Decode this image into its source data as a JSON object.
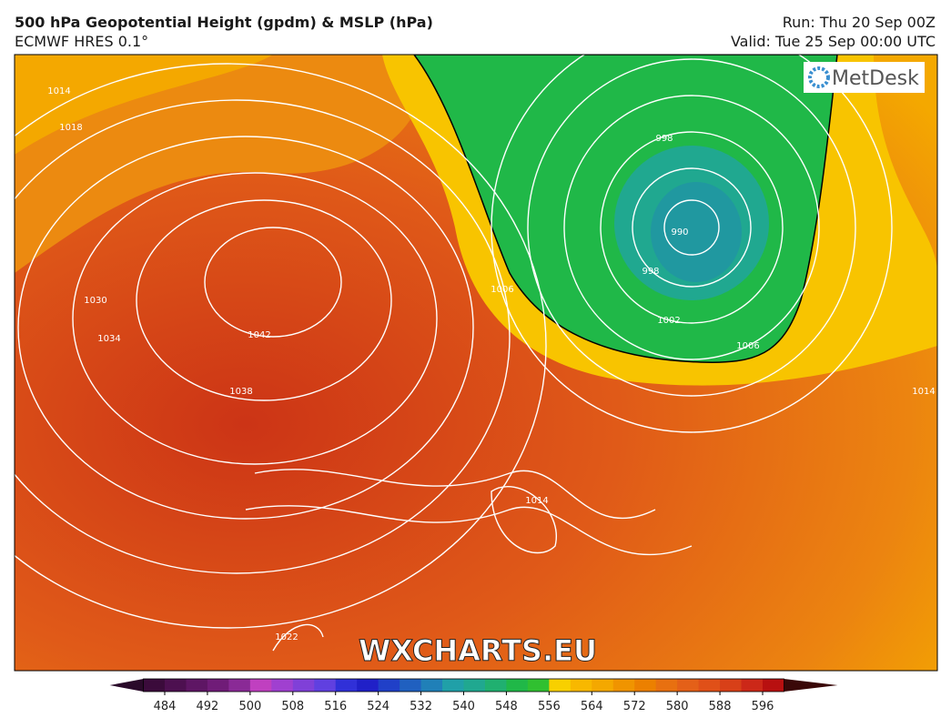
{
  "header": {
    "title": "500 hPa Geopotential Height (gpdm) & MSLP (hPa)",
    "model": "ECMWF HRES 0.1°",
    "run": "Run: Thu 20 Sep 00Z",
    "valid": "Valid: Tue 25 Sep 00:00 UTC"
  },
  "logo": "MetDesk",
  "watermark": "WXCHARTS.EU",
  "contour_labels": [
    "1014",
    "1018",
    "1030",
    "1034",
    "1042",
    "1038",
    "998",
    "990",
    "998",
    "1002",
    "1006",
    "1006",
    "1014",
    "1022",
    "1014"
  ],
  "colorbar": {
    "ticks": [
      484,
      492,
      500,
      508,
      516,
      524,
      532,
      540,
      548,
      556,
      564,
      572,
      580,
      588,
      596
    ],
    "bounds": [
      480,
      484,
      488,
      492,
      496,
      500,
      504,
      508,
      512,
      516,
      520,
      524,
      528,
      532,
      536,
      540,
      544,
      548,
      552,
      556,
      560,
      564,
      568,
      572,
      576,
      580,
      584,
      588,
      592,
      596,
      600
    ],
    "colors": [
      "#3b0b3b",
      "#4d1050",
      "#5e1664",
      "#701c78",
      "#8a2a96",
      "#c040c0",
      "#a040d0",
      "#8040d8",
      "#6040e0",
      "#3030d8",
      "#2020c8",
      "#2040c8",
      "#2060c0",
      "#2080b8",
      "#20a0a8",
      "#20a890",
      "#20b070",
      "#20b848",
      "#30c030",
      "#f8d000",
      "#f8b800",
      "#f4a800",
      "#f09400",
      "#ec8000",
      "#e87010",
      "#e46018",
      "#e05018",
      "#d84018",
      "#cc2818",
      "#b81010"
    ],
    "under_color": "#2a0a2a",
    "over_color": "#3a0808"
  }
}
